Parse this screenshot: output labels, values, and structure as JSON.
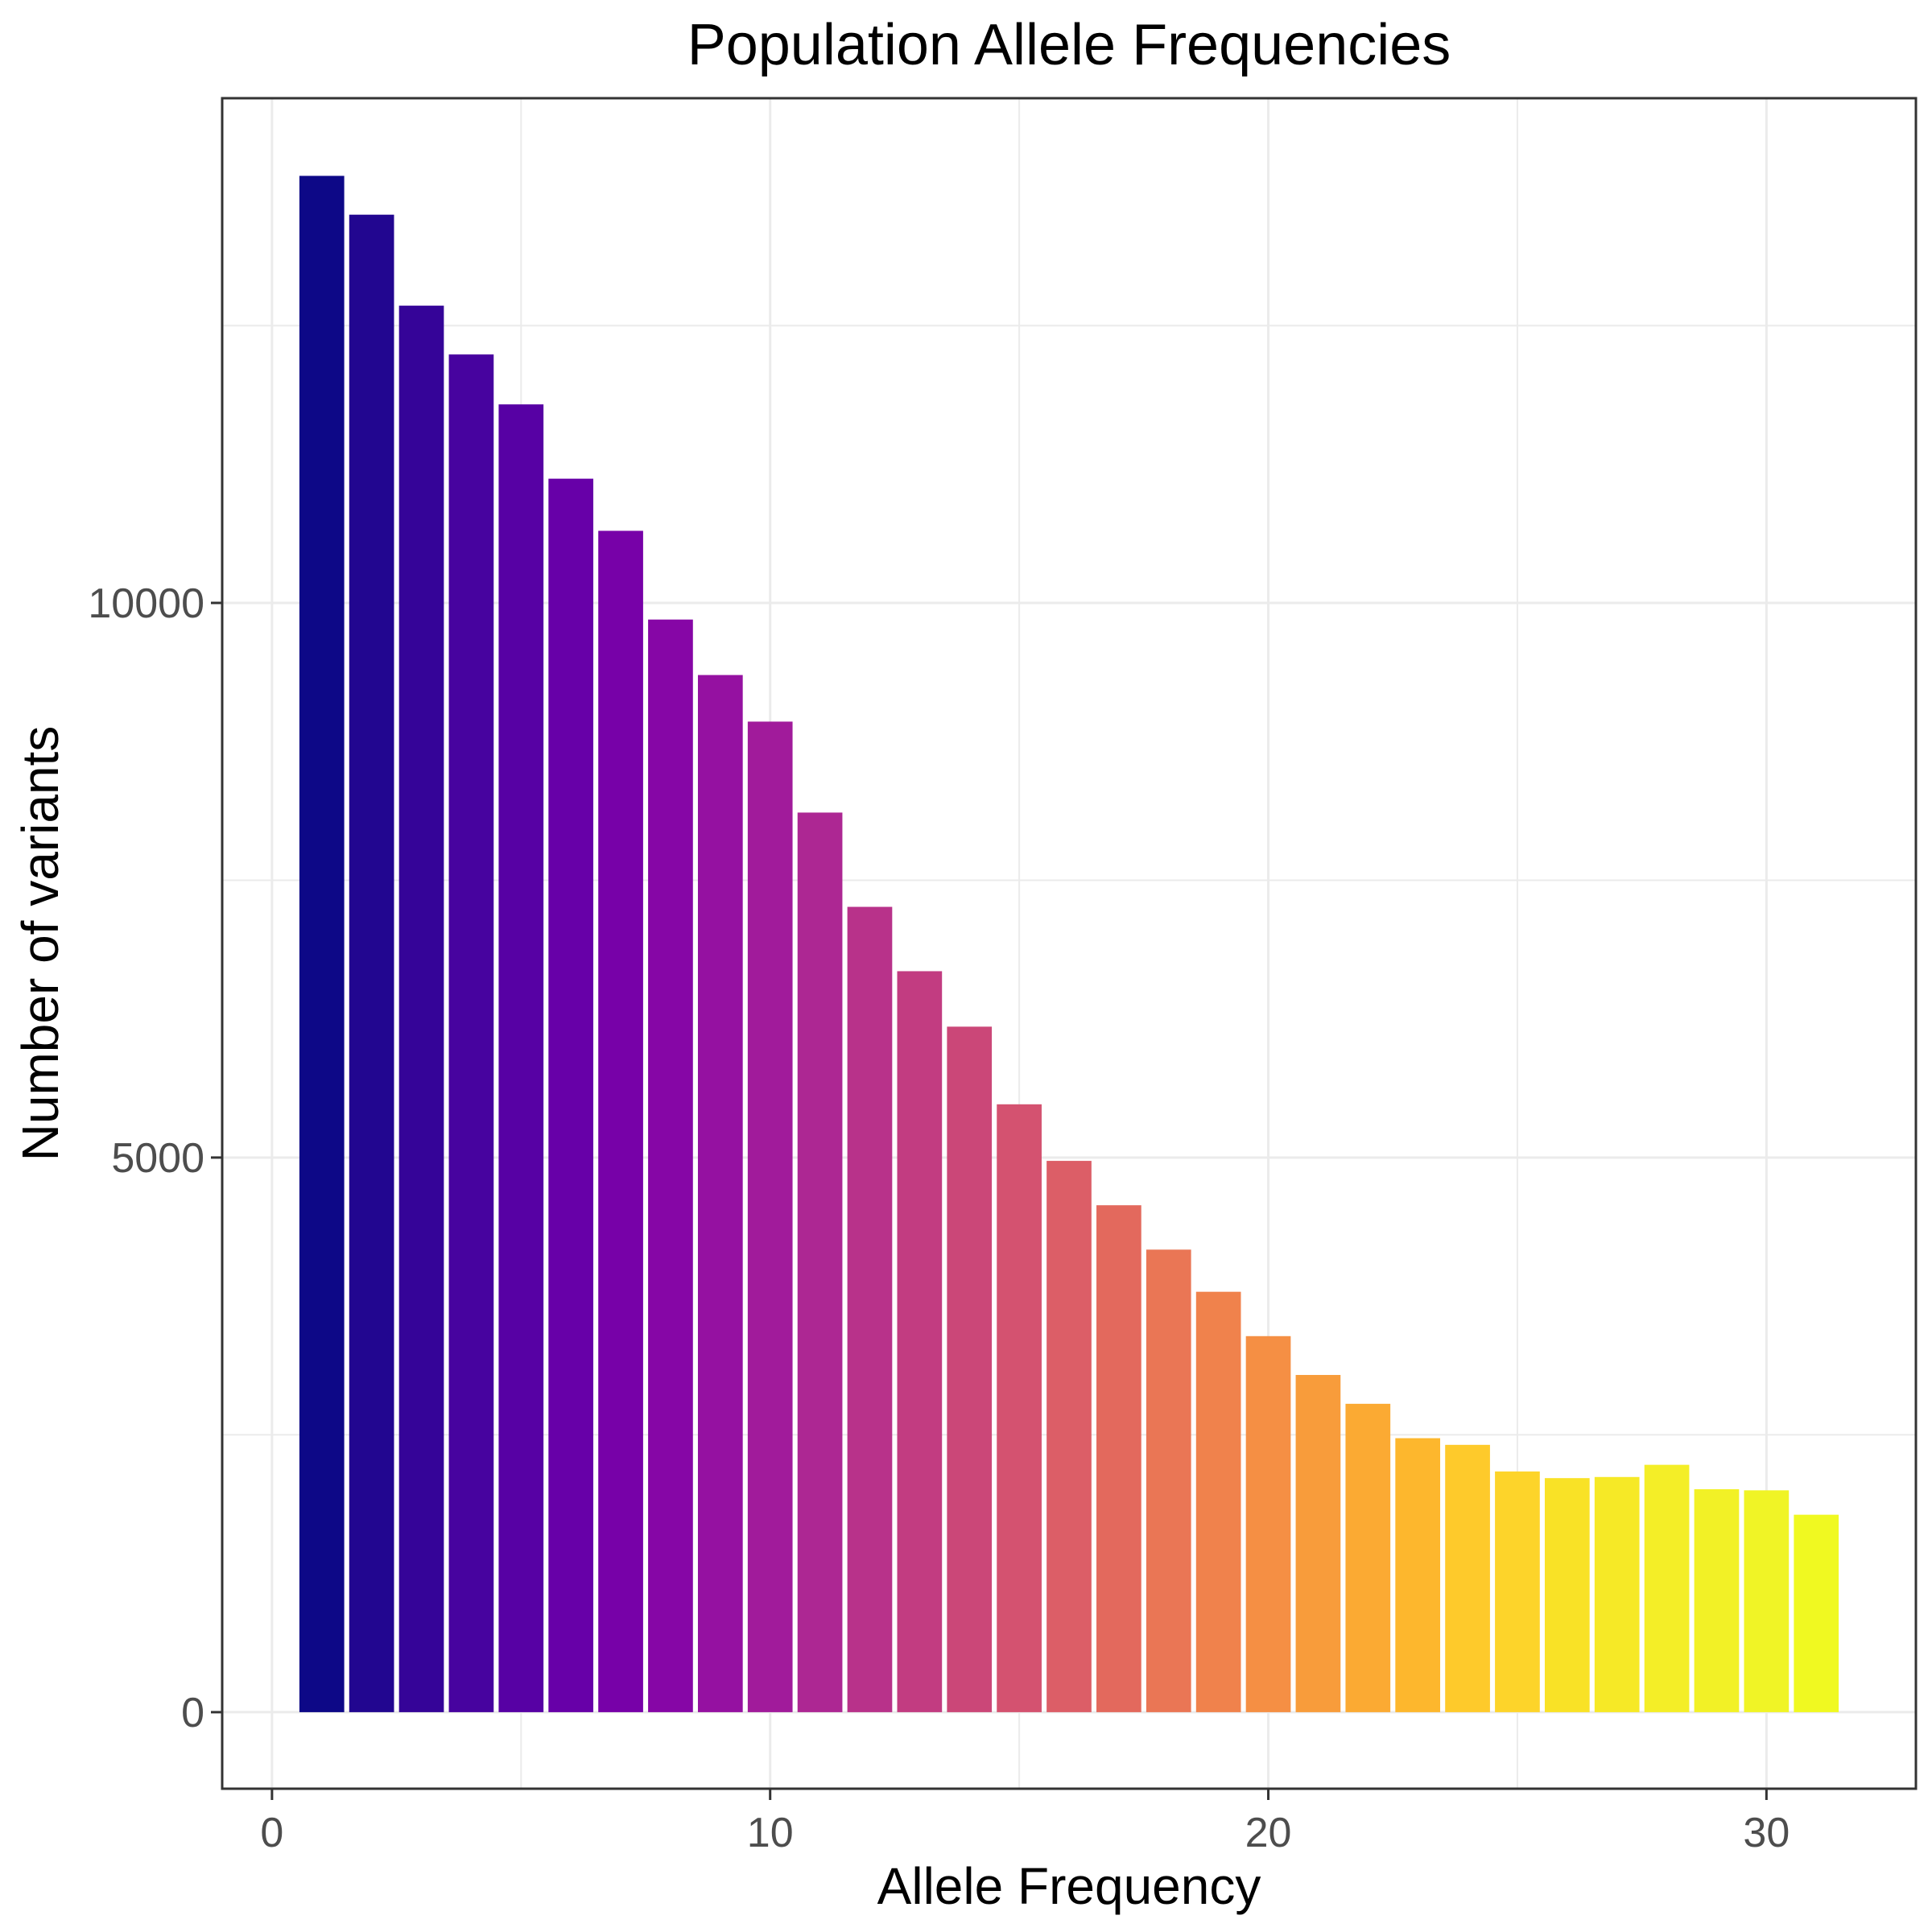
{
  "chart_data": {
    "type": "bar",
    "title": "Population Allele Frequencies",
    "xlabel": "Allele Frequency",
    "ylabel": "Number of variants",
    "x": [
      1,
      2,
      3,
      4,
      5,
      6,
      7,
      8,
      9,
      10,
      11,
      12,
      13,
      14,
      15,
      16,
      17,
      18,
      19,
      20,
      21,
      22,
      23,
      24,
      25,
      26,
      27,
      28,
      29,
      30,
      31
    ],
    "values": [
      13850,
      13500,
      12680,
      12240,
      11790,
      11120,
      10650,
      9850,
      9350,
      8930,
      8110,
      7260,
      6680,
      6180,
      5480,
      4970,
      4570,
      4170,
      3790,
      3390,
      3040,
      2780,
      2470,
      2410,
      2170,
      2110,
      2120,
      2230,
      2010,
      2000,
      1780
    ],
    "xticks": [
      0,
      10,
      20,
      30
    ],
    "xtick_labels": [
      "0",
      "10",
      "20",
      "30"
    ],
    "yticks": [
      0,
      5000,
      10000
    ],
    "ytick_labels": [
      "0",
      "5000",
      "10000"
    ],
    "xlim": [
      -1,
      33
    ],
    "ylim": [
      -690,
      14550
    ],
    "colormap": "plasma",
    "colors": [
      "#0d0887",
      "#220690",
      "#350498",
      "#47039f",
      "#5701a4",
      "#6700a8",
      "#7701a8",
      "#8606a6",
      "#9511a1",
      "#a11b9b",
      "#ad2793",
      "#b8328a",
      "#c23c81",
      "#cb4778",
      "#d45270",
      "#dc5e67",
      "#e3695d",
      "#ea7655",
      "#f0824c",
      "#f58f44",
      "#f89c3b",
      "#fbaa33",
      "#fdb72d",
      "#feca2b",
      "#fdd42a",
      "#f9e226",
      "#f6e926",
      "#f4ee27",
      "#f2f126",
      "#f0f426",
      "#f0f921"
    ],
    "grid": true,
    "legend": "none"
  }
}
